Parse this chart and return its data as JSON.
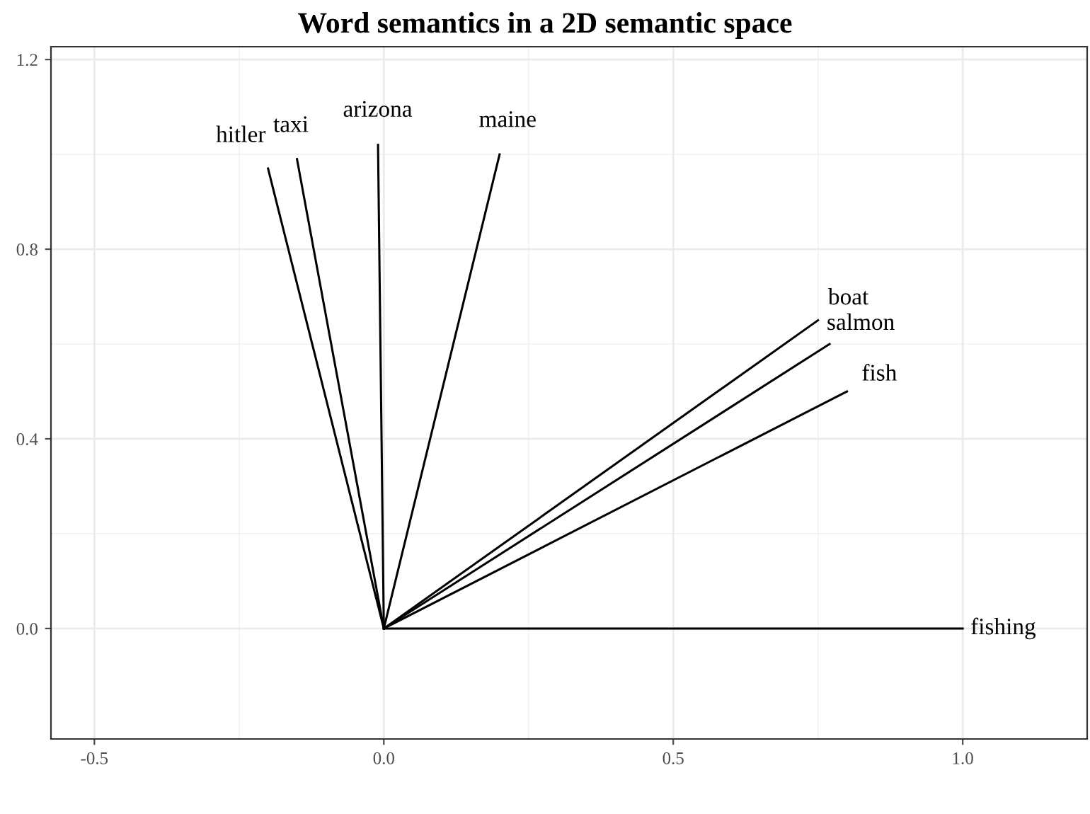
{
  "chart_data": {
    "type": "line",
    "title": "Word semantics in a 2D semantic space",
    "series": [
      {
        "name": "hitler",
        "color": "#000000",
        "x": [
          0,
          -0.2
        ],
        "values": [
          0,
          0.97
        ]
      },
      {
        "name": "taxi",
        "color": "#000000",
        "x": [
          0,
          -0.15
        ],
        "values": [
          0,
          0.99
        ]
      },
      {
        "name": "arizona",
        "color": "#000000",
        "x": [
          0,
          -0.01
        ],
        "values": [
          0,
          1.02
        ]
      },
      {
        "name": "maine",
        "color": "#000000",
        "x": [
          0,
          0.2
        ],
        "values": [
          0,
          1.0
        ]
      },
      {
        "name": "boat",
        "color": "#000000",
        "x": [
          0,
          0.75
        ],
        "values": [
          0,
          0.65
        ]
      },
      {
        "name": "salmon",
        "color": "#000000",
        "x": [
          0,
          0.77
        ],
        "values": [
          0,
          0.6
        ]
      },
      {
        "name": "fish",
        "color": "#000000",
        "x": [
          0,
          0.8
        ],
        "values": [
          0,
          0.5
        ]
      },
      {
        "name": "fishing",
        "color": "#000000",
        "x": [
          0,
          1.0
        ],
        "values": [
          0,
          0.0
        ]
      }
    ],
    "xlim": [
      -0.575,
      1.215
    ],
    "ylim": [
      -0.233,
      1.227
    ],
    "xticks": [
      {
        "value": -0.5,
        "label": "-0.5"
      },
      {
        "value": 0.0,
        "label": "0.0"
      },
      {
        "value": 0.5,
        "label": "0.5"
      },
      {
        "value": 1.0,
        "label": "1.0"
      }
    ],
    "yticks": [
      {
        "value": 0.0,
        "label": "0.0"
      },
      {
        "value": 0.4,
        "label": "0.4"
      },
      {
        "value": 0.8,
        "label": "0.8"
      },
      {
        "value": 1.2,
        "label": "1.2"
      }
    ],
    "grid": true,
    "marker": "none",
    "line_style": "solid",
    "legend": false
  }
}
